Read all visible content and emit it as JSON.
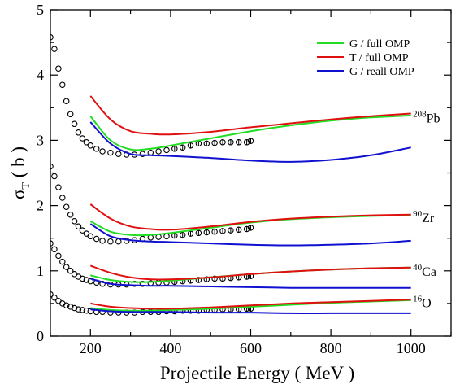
{
  "chart_data": {
    "type": "line",
    "xlabel": "Projectile Energy     (  MeV )",
    "ylabel_main": "σ",
    "ylabel_sub": "T",
    "ylabel_rest": "  ( b )",
    "xlim": [
      100,
      1100
    ],
    "ylim": [
      0,
      5
    ],
    "x_ticks": [
      200,
      400,
      600,
      800,
      1000
    ],
    "y_ticks": [
      0,
      1,
      2,
      3,
      4,
      5
    ],
    "grid": false,
    "legend_position": "top-right",
    "series_names": [
      "G / full OMP",
      "T / full OMP",
      "G / reall OMP"
    ],
    "colors": {
      "G / full OMP": "#22dd22",
      "T / full OMP": "#e01010",
      "G / reall OMP": "#1010d0",
      "data": "#000000"
    },
    "annotations": [
      {
        "mass": "208",
        "element": "Pb",
        "x": 1005,
        "y": 3.35
      },
      {
        "mass": "90",
        "element": "Zr",
        "x": 1005,
        "y": 1.82
      },
      {
        "mass": "40",
        "element": "Ca",
        "x": 1005,
        "y": 1.0
      },
      {
        "mass": "16",
        "element": "O",
        "x": 1005,
        "y": 0.52
      }
    ],
    "curves": [
      {
        "nucleus": "208Pb",
        "series": "G / full OMP",
        "x": [
          200,
          250,
          300,
          350,
          400,
          500,
          600,
          700,
          800,
          900,
          1000
        ],
        "y": [
          3.37,
          3.0,
          2.86,
          2.87,
          2.92,
          3.03,
          3.14,
          3.23,
          3.3,
          3.35,
          3.38
        ]
      },
      {
        "nucleus": "208Pb",
        "series": "T / full OMP",
        "x": [
          200,
          250,
          300,
          350,
          400,
          500,
          600,
          700,
          800,
          900,
          1000
        ],
        "y": [
          3.68,
          3.32,
          3.14,
          3.1,
          3.09,
          3.13,
          3.2,
          3.26,
          3.32,
          3.37,
          3.41
        ]
      },
      {
        "nucleus": "208Pb",
        "series": "G / reall OMP",
        "x": [
          200,
          250,
          300,
          350,
          400,
          500,
          600,
          700,
          800,
          900,
          1000
        ],
        "y": [
          3.28,
          2.95,
          2.79,
          2.77,
          2.76,
          2.73,
          2.69,
          2.67,
          2.7,
          2.77,
          2.89
        ]
      },
      {
        "nucleus": "90Zr",
        "series": "G / full OMP",
        "x": [
          200,
          250,
          300,
          350,
          400,
          500,
          600,
          700,
          800,
          900,
          1000
        ],
        "y": [
          1.76,
          1.6,
          1.55,
          1.55,
          1.58,
          1.66,
          1.74,
          1.79,
          1.82,
          1.84,
          1.85
        ]
      },
      {
        "nucleus": "90Zr",
        "series": "T / full OMP",
        "x": [
          200,
          250,
          300,
          350,
          400,
          500,
          600,
          700,
          800,
          900,
          1000
        ],
        "y": [
          2.02,
          1.8,
          1.68,
          1.64,
          1.63,
          1.68,
          1.75,
          1.8,
          1.83,
          1.85,
          1.86
        ]
      },
      {
        "nucleus": "90Zr",
        "series": "G / reall OMP",
        "x": [
          200,
          250,
          300,
          350,
          400,
          500,
          600,
          700,
          800,
          900,
          1000
        ],
        "y": [
          1.72,
          1.53,
          1.47,
          1.45,
          1.44,
          1.42,
          1.4,
          1.39,
          1.4,
          1.42,
          1.46
        ]
      },
      {
        "nucleus": "40Ca",
        "series": "G / full OMP",
        "x": [
          200,
          250,
          300,
          350,
          400,
          500,
          600,
          700,
          800,
          900,
          1000
        ],
        "y": [
          0.93,
          0.86,
          0.83,
          0.83,
          0.85,
          0.9,
          0.95,
          0.99,
          1.02,
          1.04,
          1.05
        ]
      },
      {
        "nucleus": "40Ca",
        "series": "T / full OMP",
        "x": [
          200,
          250,
          300,
          350,
          400,
          500,
          600,
          700,
          800,
          900,
          1000
        ],
        "y": [
          1.08,
          0.97,
          0.9,
          0.87,
          0.87,
          0.9,
          0.95,
          0.99,
          1.02,
          1.04,
          1.05
        ]
      },
      {
        "nucleus": "40Ca",
        "series": "G / reall OMP",
        "x": [
          200,
          250,
          300,
          350,
          400,
          500,
          600,
          700,
          800,
          900,
          1000
        ],
        "y": [
          0.88,
          0.8,
          0.78,
          0.77,
          0.77,
          0.76,
          0.75,
          0.74,
          0.74,
          0.74,
          0.74
        ]
      },
      {
        "nucleus": "16O",
        "series": "G / full OMP",
        "x": [
          200,
          250,
          300,
          350,
          400,
          500,
          600,
          700,
          800,
          900,
          1000
        ],
        "y": [
          0.43,
          0.4,
          0.39,
          0.39,
          0.4,
          0.42,
          0.45,
          0.48,
          0.51,
          0.53,
          0.55
        ]
      },
      {
        "nucleus": "16O",
        "series": "T / full OMP",
        "x": [
          200,
          250,
          300,
          350,
          400,
          500,
          600,
          700,
          800,
          900,
          1000
        ],
        "y": [
          0.5,
          0.45,
          0.43,
          0.42,
          0.42,
          0.44,
          0.47,
          0.5,
          0.52,
          0.54,
          0.56
        ]
      },
      {
        "nucleus": "16O",
        "series": "G / reall OMP",
        "x": [
          200,
          250,
          300,
          350,
          400,
          500,
          600,
          700,
          800,
          900,
          1000
        ],
        "y": [
          0.41,
          0.38,
          0.37,
          0.37,
          0.37,
          0.36,
          0.36,
          0.35,
          0.35,
          0.35,
          0.35
        ]
      }
    ],
    "experimental_data": [
      {
        "nucleus": "208Pb",
        "x": [
          100,
          110,
          120,
          130,
          140,
          150,
          160,
          170,
          180,
          190,
          200,
          215,
          230,
          250,
          270,
          290,
          310,
          330,
          350,
          370,
          390,
          410,
          430,
          450,
          470,
          490,
          510,
          530,
          550,
          570,
          590,
          600
        ],
        "y": [
          4.58,
          4.4,
          4.1,
          3.85,
          3.6,
          3.4,
          3.25,
          3.12,
          3.03,
          2.97,
          2.92,
          2.87,
          2.83,
          2.81,
          2.79,
          2.78,
          2.78,
          2.79,
          2.81,
          2.83,
          2.85,
          2.87,
          2.89,
          2.92,
          2.95,
          2.95,
          2.96,
          2.97,
          2.97,
          2.97,
          2.97,
          2.99
        ]
      },
      {
        "nucleus": "90Zr",
        "x": [
          100,
          110,
          120,
          130,
          140,
          150,
          160,
          170,
          180,
          190,
          200,
          215,
          230,
          250,
          270,
          290,
          310,
          330,
          350,
          370,
          390,
          410,
          430,
          450,
          470,
          490,
          510,
          530,
          550,
          570,
          590,
          600
        ],
        "y": [
          2.6,
          2.45,
          2.28,
          2.12,
          1.98,
          1.86,
          1.76,
          1.68,
          1.62,
          1.57,
          1.53,
          1.49,
          1.46,
          1.45,
          1.45,
          1.46,
          1.47,
          1.49,
          1.51,
          1.52,
          1.53,
          1.54,
          1.55,
          1.57,
          1.58,
          1.59,
          1.6,
          1.61,
          1.62,
          1.63,
          1.64,
          1.66
        ]
      },
      {
        "nucleus": "40Ca",
        "x": [
          100,
          110,
          120,
          130,
          140,
          150,
          160,
          170,
          180,
          190,
          200,
          215,
          230,
          250,
          270,
          290,
          310,
          330,
          350,
          370,
          390,
          410,
          430,
          450,
          470,
          490,
          510,
          530,
          550,
          570,
          590,
          600
        ],
        "y": [
          1.42,
          1.33,
          1.23,
          1.14,
          1.06,
          1.0,
          0.95,
          0.91,
          0.88,
          0.86,
          0.84,
          0.82,
          0.8,
          0.79,
          0.79,
          0.79,
          0.8,
          0.8,
          0.81,
          0.82,
          0.82,
          0.83,
          0.84,
          0.85,
          0.86,
          0.87,
          0.88,
          0.88,
          0.89,
          0.9,
          0.91,
          0.92
        ]
      },
      {
        "nucleus": "16O",
        "x": [
          100,
          110,
          120,
          130,
          140,
          150,
          160,
          170,
          180,
          190,
          200,
          215,
          230,
          250,
          270,
          290,
          310,
          330,
          350,
          370,
          390,
          410,
          430,
          450,
          470,
          490,
          510,
          530,
          550,
          570,
          590,
          600
        ],
        "y": [
          0.64,
          0.59,
          0.54,
          0.5,
          0.47,
          0.45,
          0.43,
          0.41,
          0.4,
          0.39,
          0.38,
          0.37,
          0.37,
          0.36,
          0.36,
          0.36,
          0.36,
          0.37,
          0.37,
          0.37,
          0.38,
          0.38,
          0.39,
          0.39,
          0.39,
          0.4,
          0.4,
          0.41,
          0.41,
          0.41,
          0.42,
          0.42
        ]
      }
    ]
  }
}
